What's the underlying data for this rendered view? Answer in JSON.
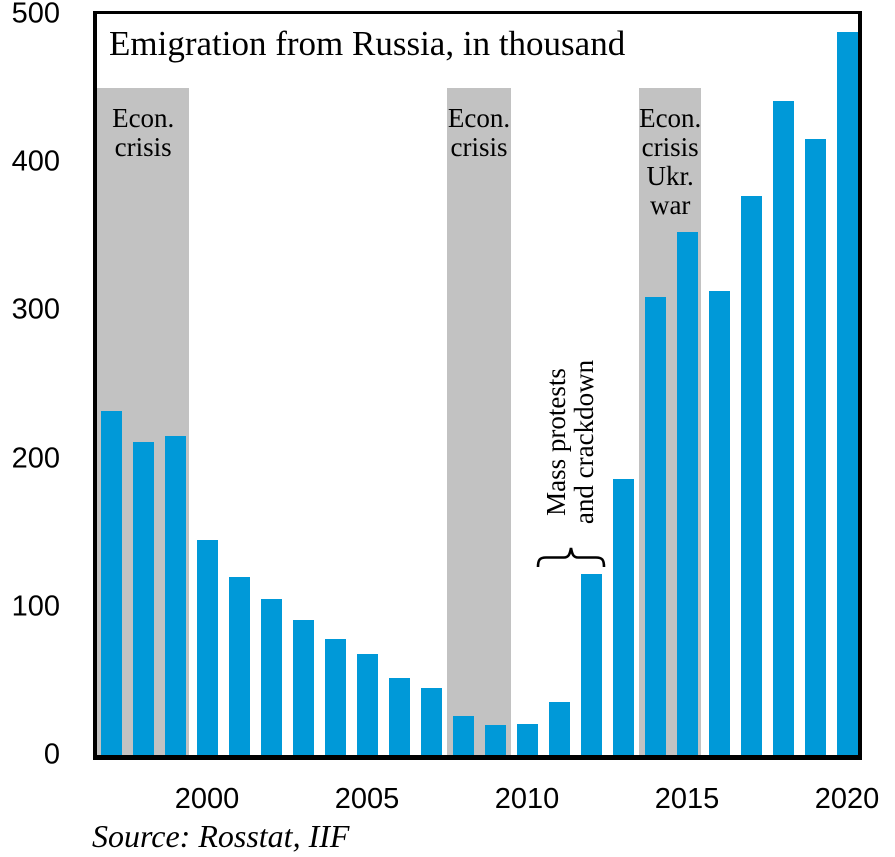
{
  "chart_data": {
    "type": "bar",
    "title": "Emigration from Russia, in thousand",
    "source": "Source: Rosstat, IIF",
    "xlabel": "",
    "ylabel": "",
    "unit": "thousand persons",
    "x": [
      1997,
      1998,
      1999,
      2000,
      2001,
      2002,
      2003,
      2004,
      2005,
      2006,
      2007,
      2008,
      2009,
      2010,
      2011,
      2012,
      2013,
      2014,
      2015,
      2016,
      2017,
      2018,
      2019,
      2020
    ],
    "values": [
      232,
      211,
      215,
      145,
      120,
      105,
      91,
      78,
      68,
      52,
      45,
      26,
      20,
      21,
      36,
      122,
      186,
      309,
      353,
      313,
      377,
      441,
      416,
      488
    ],
    "ylim": [
      0,
      500
    ],
    "y_ticks": [
      0,
      100,
      200,
      300,
      400,
      500
    ],
    "x_ticks": [
      2000,
      2005,
      2010,
      2015,
      2020
    ],
    "grid": false,
    "legend": "none",
    "bar_color": "#0099d8",
    "shade_color": "#c2c2c2",
    "axis_color": "#000000",
    "shaded_regions": [
      {
        "from": 1996.5,
        "to": 1999.45,
        "top": 450,
        "label_lines": [
          "Econ.",
          "crisis"
        ]
      },
      {
        "from": 2007.5,
        "to": 2009.5,
        "top": 450,
        "label_lines": [
          "Econ.",
          "crisis"
        ]
      },
      {
        "from": 2013.5,
        "to": 2015.45,
        "top": 450,
        "label_lines": [
          "Econ.",
          "crisis",
          "Ukr.",
          "war"
        ]
      }
    ],
    "annotation": {
      "lines": [
        "Mass protests",
        "and crackdown"
      ],
      "target_years": [
        2011,
        2012
      ]
    }
  }
}
